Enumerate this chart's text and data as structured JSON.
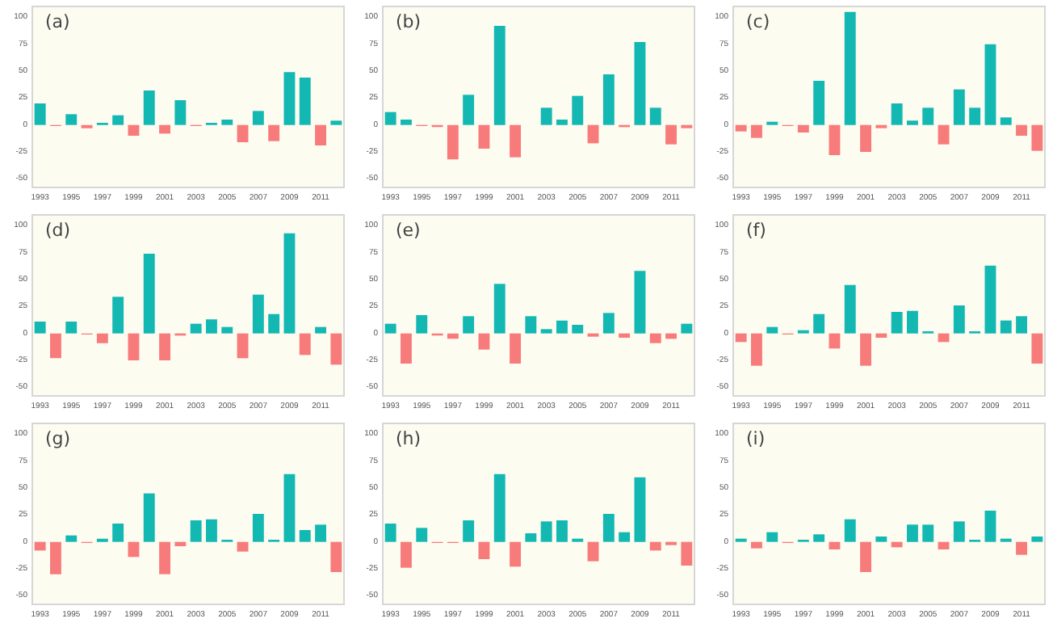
{
  "chart_data": [
    {
      "type": "bar",
      "title": "(a)",
      "categories": [
        "1993",
        null,
        "1995",
        null,
        "1997",
        null,
        "1999",
        null,
        "2001",
        null,
        "2003",
        null,
        "2005",
        null,
        "2007",
        null,
        "2009",
        null,
        "2011",
        null
      ],
      "values": [
        20,
        -1,
        10,
        -3,
        2,
        9,
        -10,
        32,
        -8,
        23,
        -1,
        2,
        5,
        -16,
        13,
        -15,
        49,
        44,
        -19,
        4
      ],
      "colors": [
        "#14b8b3",
        "#f87b7b",
        "#14b8b3",
        "#f87b7b",
        "#14b8b3",
        "#14b8b3",
        "#f87b7b",
        "#14b8b3",
        "#f87b7b",
        "#14b8b3",
        "#f87b7b",
        "#14b8b3",
        "#14b8b3",
        "#f87b7b",
        "#14b8b3",
        "#f87b7b",
        "#14b8b3",
        "#14b8b3",
        "#f87b7b",
        "#14b8b3"
      ],
      "ylim": [
        -58,
        110
      ],
      "yticks": [
        -50,
        -25,
        0,
        25,
        50,
        75,
        100
      ]
    },
    {
      "type": "bar",
      "title": "(b)",
      "categories": [
        "1993",
        null,
        "1995",
        null,
        "1997",
        null,
        "1999",
        null,
        "2001",
        null,
        "2003",
        null,
        "2005",
        null,
        "2007",
        null,
        "2009",
        null,
        "2011",
        null
      ],
      "values": [
        12,
        5,
        -1,
        -2,
        -32,
        28,
        -22,
        92,
        -30,
        null,
        16,
        5,
        27,
        -17,
        47,
        -2,
        77,
        16,
        -18,
        -3
      ],
      "colors": [
        "#14b8b3",
        "#14b8b3",
        "#f87b7b",
        "#f87b7b",
        "#f87b7b",
        "#14b8b3",
        "#f87b7b",
        "#14b8b3",
        "#f87b7b",
        "#14b8b3",
        "#14b8b3",
        "#14b8b3",
        "#14b8b3",
        "#f87b7b",
        "#14b8b3",
        "#f87b7b",
        "#14b8b3",
        "#14b8b3",
        "#f87b7b",
        "#f87b7b"
      ],
      "ylim": [
        -58,
        110
      ],
      "yticks": [
        -50,
        -25,
        0,
        25,
        50,
        75,
        100
      ]
    },
    {
      "type": "bar",
      "title": "(c)",
      "categories": [
        "1993",
        null,
        "1995",
        null,
        "1997",
        null,
        "1999",
        null,
        "2001",
        null,
        "2003",
        null,
        "2005",
        null,
        "2007",
        null,
        "2009",
        null,
        "2011",
        null
      ],
      "values": [
        -6,
        -12,
        3,
        -1,
        -7,
        41,
        -28,
        105,
        -25,
        -3,
        20,
        4,
        16,
        -18,
        33,
        16,
        75,
        7,
        -10,
        -24
      ],
      "colors": [
        "#f87b7b",
        "#f87b7b",
        "#14b8b3",
        "#f87b7b",
        "#f87b7b",
        "#14b8b3",
        "#f87b7b",
        "#14b8b3",
        "#f87b7b",
        "#f87b7b",
        "#14b8b3",
        "#14b8b3",
        "#14b8b3",
        "#f87b7b",
        "#14b8b3",
        "#14b8b3",
        "#14b8b3",
        "#14b8b3",
        "#f87b7b",
        "#f87b7b"
      ],
      "ylim": [
        -58,
        110
      ],
      "yticks": [
        -50,
        -25,
        0,
        25,
        50,
        75,
        100
      ]
    },
    {
      "type": "bar",
      "title": "(d)",
      "categories": [
        "1993",
        null,
        "1995",
        null,
        "1997",
        null,
        "1999",
        null,
        "2001",
        null,
        "2003",
        null,
        "2005",
        null,
        "2007",
        null,
        "2009",
        null,
        "2011",
        null
      ],
      "values": [
        11,
        -23,
        11,
        -1,
        -9,
        34,
        -25,
        74,
        -25,
        -2,
        9,
        13,
        6,
        -23,
        36,
        18,
        93,
        -20,
        6,
        -29
      ],
      "colors": [
        "#14b8b3",
        "#f87b7b",
        "#14b8b3",
        "#f87b7b",
        "#f87b7b",
        "#14b8b3",
        "#f87b7b",
        "#14b8b3",
        "#f87b7b",
        "#f87b7b",
        "#14b8b3",
        "#14b8b3",
        "#14b8b3",
        "#f87b7b",
        "#14b8b3",
        "#14b8b3",
        "#14b8b3",
        "#f87b7b",
        "#14b8b3",
        "#f87b7b"
      ],
      "ylim": [
        -58,
        110
      ],
      "yticks": [
        -50,
        -25,
        0,
        25,
        50,
        75,
        100
      ]
    },
    {
      "type": "bar",
      "title": "(e)",
      "categories": [
        "1993",
        null,
        "1995",
        null,
        "1997",
        null,
        "1999",
        null,
        "2001",
        null,
        "2003",
        null,
        "2005",
        null,
        "2007",
        null,
        "2009",
        null,
        "2011",
        null
      ],
      "values": [
        9,
        -28,
        17,
        -2,
        -5,
        16,
        -15,
        46,
        -28,
        16,
        4,
        12,
        8,
        -3,
        19,
        -4,
        58,
        -9,
        -5,
        9
      ],
      "colors": [
        "#14b8b3",
        "#f87b7b",
        "#14b8b3",
        "#f87b7b",
        "#f87b7b",
        "#14b8b3",
        "#f87b7b",
        "#14b8b3",
        "#f87b7b",
        "#14b8b3",
        "#14b8b3",
        "#14b8b3",
        "#14b8b3",
        "#f87b7b",
        "#14b8b3",
        "#f87b7b",
        "#14b8b3",
        "#f87b7b",
        "#f87b7b",
        "#14b8b3"
      ],
      "ylim": [
        -58,
        110
      ],
      "yticks": [
        -50,
        -25,
        0,
        25,
        50,
        75,
        100
      ]
    },
    {
      "type": "bar",
      "title": "(f)",
      "categories": [
        "1993",
        null,
        "1995",
        null,
        "1997",
        null,
        "1999",
        null,
        "2001",
        null,
        "2003",
        null,
        "2005",
        null,
        "2007",
        null,
        "2009",
        null,
        "2011",
        null
      ],
      "values": [
        -8,
        -30,
        6,
        -1,
        3,
        18,
        -14,
        45,
        -30,
        -4,
        20,
        21,
        2,
        -8,
        26,
        2,
        63,
        12,
        16,
        -28
      ],
      "colors": [
        "#f87b7b",
        "#f87b7b",
        "#14b8b3",
        "#f87b7b",
        "#14b8b3",
        "#14b8b3",
        "#f87b7b",
        "#14b8b3",
        "#f87b7b",
        "#f87b7b",
        "#14b8b3",
        "#14b8b3",
        "#14b8b3",
        "#f87b7b",
        "#14b8b3",
        "#14b8b3",
        "#14b8b3",
        "#14b8b3",
        "#14b8b3",
        "#f87b7b"
      ],
      "ylim": [
        -58,
        110
      ],
      "yticks": [
        -50,
        -25,
        0,
        25,
        50,
        75,
        100
      ]
    },
    {
      "type": "bar",
      "title": "(g)",
      "categories": [
        "1993",
        null,
        "1995",
        null,
        "1997",
        null,
        "1999",
        null,
        "2001",
        null,
        "2003",
        null,
        "2005",
        null,
        "2007",
        null,
        "2009",
        null,
        "2011",
        null
      ],
      "values": [
        -8,
        -30,
        6,
        -1,
        3,
        17,
        -14,
        45,
        -30,
        -4,
        20,
        21,
        2,
        -9,
        26,
        2,
        63,
        11,
        16,
        -28
      ],
      "colors": [
        "#f87b7b",
        "#f87b7b",
        "#14b8b3",
        "#f87b7b",
        "#14b8b3",
        "#14b8b3",
        "#f87b7b",
        "#14b8b3",
        "#f87b7b",
        "#f87b7b",
        "#14b8b3",
        "#14b8b3",
        "#14b8b3",
        "#f87b7b",
        "#14b8b3",
        "#14b8b3",
        "#14b8b3",
        "#14b8b3",
        "#14b8b3",
        "#f87b7b"
      ],
      "ylim": [
        -58,
        110
      ],
      "yticks": [
        -50,
        -25,
        0,
        25,
        50,
        75,
        100
      ]
    },
    {
      "type": "bar",
      "title": "(h)",
      "categories": [
        "1993",
        null,
        "1995",
        null,
        "1997",
        null,
        "1999",
        null,
        "2001",
        null,
        "2003",
        null,
        "2005",
        null,
        "2007",
        null,
        "2009",
        null,
        "2011",
        null
      ],
      "values": [
        17,
        -24,
        13,
        -1,
        -1,
        20,
        -16,
        63,
        -23,
        8,
        19,
        20,
        3,
        -18,
        26,
        9,
        60,
        -8,
        -3,
        -22
      ],
      "colors": [
        "#14b8b3",
        "#f87b7b",
        "#14b8b3",
        "#f87b7b",
        "#f87b7b",
        "#14b8b3",
        "#f87b7b",
        "#14b8b3",
        "#f87b7b",
        "#14b8b3",
        "#14b8b3",
        "#14b8b3",
        "#14b8b3",
        "#f87b7b",
        "#14b8b3",
        "#14b8b3",
        "#14b8b3",
        "#f87b7b",
        "#f87b7b",
        "#f87b7b"
      ],
      "ylim": [
        -58,
        110
      ],
      "yticks": [
        -50,
        -25,
        0,
        25,
        50,
        75,
        100
      ]
    },
    {
      "type": "bar",
      "title": "(i)",
      "categories": [
        "1993",
        null,
        "1995",
        null,
        "1997",
        null,
        "1999",
        null,
        "2001",
        null,
        "2003",
        null,
        "2005",
        null,
        "2007",
        null,
        "2009",
        null,
        "2011",
        null
      ],
      "values": [
        3,
        -6,
        9,
        -1,
        2,
        7,
        -7,
        21,
        -28,
        5,
        -5,
        16,
        16,
        -7,
        19,
        2,
        29,
        3,
        -12,
        5
      ],
      "colors": [
        "#14b8b3",
        "#f87b7b",
        "#14b8b3",
        "#f87b7b",
        "#14b8b3",
        "#14b8b3",
        "#f87b7b",
        "#14b8b3",
        "#f87b7b",
        "#14b8b3",
        "#f87b7b",
        "#14b8b3",
        "#14b8b3",
        "#f87b7b",
        "#14b8b3",
        "#14b8b3",
        "#14b8b3",
        "#14b8b3",
        "#f87b7b",
        "#14b8b3"
      ],
      "ylim": [
        -58,
        110
      ],
      "yticks": [
        -50,
        -25,
        0,
        25,
        50,
        75,
        100
      ]
    }
  ]
}
